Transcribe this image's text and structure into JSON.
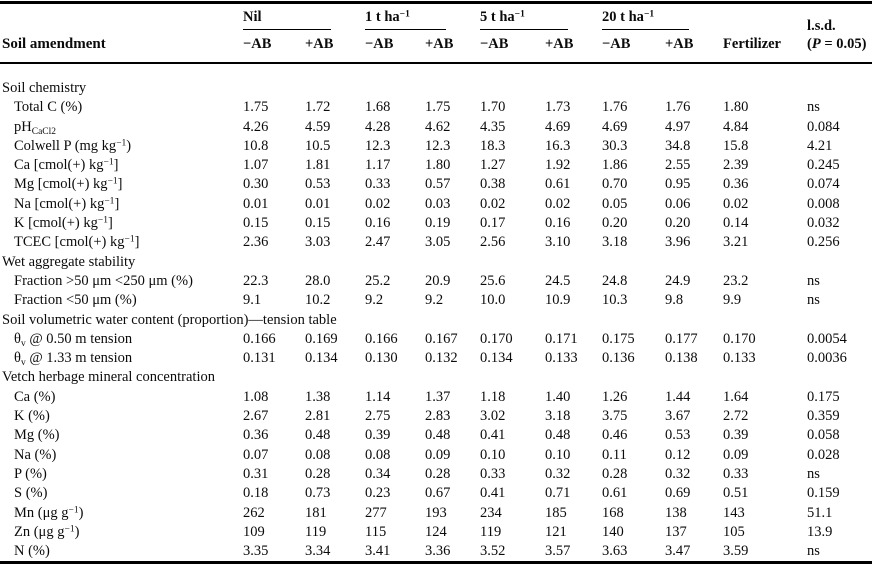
{
  "header": {
    "row_label": "Soil amendment",
    "groups": [
      {
        "label": [
          {
            "t": "Nil"
          }
        ],
        "subcols": [
          "−AB",
          "+AB"
        ]
      },
      {
        "label": [
          {
            "t": "1 t ha"
          },
          {
            "t": "−1",
            "s": "sup"
          }
        ],
        "subcols": [
          "−AB",
          "+AB"
        ]
      },
      {
        "label": [
          {
            "t": "5 t ha"
          },
          {
            "t": "−1",
            "s": "sup"
          }
        ],
        "subcols": [
          "−AB",
          "+AB"
        ]
      },
      {
        "label": [
          {
            "t": "20 t ha"
          },
          {
            "t": "−1",
            "s": "sup"
          }
        ],
        "subcols": [
          "−AB",
          "+AB"
        ]
      }
    ],
    "fertilizer": "Fertilizer",
    "lsd_line1": [
      {
        "t": "l.s.d."
      }
    ],
    "lsd_line2": [
      {
        "t": "("
      },
      {
        "t": "P",
        "s": "i"
      },
      {
        "t": " = 0.05)"
      }
    ]
  },
  "rows": [
    {
      "type": "section",
      "label": [
        {
          "t": "Soil chemistry"
        }
      ]
    },
    {
      "type": "data",
      "label": [
        {
          "t": "Total C (%)"
        }
      ],
      "values": [
        "1.75",
        "1.72",
        "1.68",
        "1.75",
        "1.70",
        "1.73",
        "1.76",
        "1.76",
        "1.80",
        "ns"
      ]
    },
    {
      "type": "data",
      "label": [
        {
          "t": "pH"
        },
        {
          "t": "CaCl2",
          "s": "sub"
        }
      ],
      "values": [
        "4.26",
        "4.59",
        "4.28",
        "4.62",
        "4.35",
        "4.69",
        "4.69",
        "4.97",
        "4.84",
        "0.084"
      ]
    },
    {
      "type": "data",
      "label": [
        {
          "t": "Colwell P (mg kg"
        },
        {
          "t": "−1",
          "s": "sup"
        },
        {
          "t": ")"
        }
      ],
      "values": [
        "10.8",
        "10.5",
        "12.3",
        "12.3",
        "18.3",
        "16.3",
        "30.3",
        "34.8",
        "15.8",
        "4.21"
      ]
    },
    {
      "type": "data",
      "label": [
        {
          "t": "Ca [cmol(+) kg"
        },
        {
          "t": "−1",
          "s": "sup"
        },
        {
          "t": "]"
        }
      ],
      "values": [
        "1.07",
        "1.81",
        "1.17",
        "1.80",
        "1.27",
        "1.92",
        "1.86",
        "2.55",
        "2.39",
        "0.245"
      ]
    },
    {
      "type": "data",
      "label": [
        {
          "t": "Mg [cmol(+) kg"
        },
        {
          "t": "−1",
          "s": "sup"
        },
        {
          "t": "]"
        }
      ],
      "values": [
        "0.30",
        "0.53",
        "0.33",
        "0.57",
        "0.38",
        "0.61",
        "0.70",
        "0.95",
        "0.36",
        "0.074"
      ]
    },
    {
      "type": "data",
      "label": [
        {
          "t": "Na [cmol(+) kg"
        },
        {
          "t": "−1",
          "s": "sup"
        },
        {
          "t": "]"
        }
      ],
      "values": [
        "0.01",
        "0.01",
        "0.02",
        "0.03",
        "0.02",
        "0.02",
        "0.05",
        "0.06",
        "0.02",
        "0.008"
      ]
    },
    {
      "type": "data",
      "label": [
        {
          "t": "K [cmol(+) kg"
        },
        {
          "t": "−1",
          "s": "sup"
        },
        {
          "t": "]"
        }
      ],
      "values": [
        "0.15",
        "0.15",
        "0.16",
        "0.19",
        "0.17",
        "0.16",
        "0.20",
        "0.20",
        "0.14",
        "0.032"
      ]
    },
    {
      "type": "data",
      "label": [
        {
          "t": "TCEC [cmol(+) kg"
        },
        {
          "t": "−1",
          "s": "sup"
        },
        {
          "t": "]"
        }
      ],
      "values": [
        "2.36",
        "3.03",
        "2.47",
        "3.05",
        "2.56",
        "3.10",
        "3.18",
        "3.96",
        "3.21",
        "0.256"
      ]
    },
    {
      "type": "section",
      "label": [
        {
          "t": "Wet aggregate stability"
        }
      ]
    },
    {
      "type": "data",
      "label": [
        {
          "t": "Fraction >50 μm <250 μm (%)"
        }
      ],
      "values": [
        "22.3",
        "28.0",
        "25.2",
        "20.9",
        "25.6",
        "24.5",
        "24.8",
        "24.9",
        "23.2",
        "ns"
      ]
    },
    {
      "type": "data",
      "label": [
        {
          "t": "Fraction <50 μm (%)"
        }
      ],
      "values": [
        "9.1",
        "10.2",
        "9.2",
        "9.2",
        "10.0",
        "10.9",
        "10.3",
        "9.8",
        "9.9",
        "ns"
      ]
    },
    {
      "type": "section",
      "label": [
        {
          "t": "Soil volumetric water content (proportion)—tension table"
        }
      ]
    },
    {
      "type": "data",
      "label": [
        {
          "t": "θ"
        },
        {
          "t": "v",
          "s": "sub"
        },
        {
          "t": " @ 0.50 m tension"
        }
      ],
      "values": [
        "0.166",
        "0.169",
        "0.166",
        "0.167",
        "0.170",
        "0.171",
        "0.175",
        "0.177",
        "0.170",
        "0.0054"
      ]
    },
    {
      "type": "data",
      "label": [
        {
          "t": "θ"
        },
        {
          "t": "v",
          "s": "sub"
        },
        {
          "t": " @ 1.33 m tension"
        }
      ],
      "values": [
        "0.131",
        "0.134",
        "0.130",
        "0.132",
        "0.134",
        "0.133",
        "0.136",
        "0.138",
        "0.133",
        "0.0036"
      ]
    },
    {
      "type": "section",
      "label": [
        {
          "t": "Vetch herbage mineral concentration"
        }
      ]
    },
    {
      "type": "data",
      "label": [
        {
          "t": "Ca (%)"
        }
      ],
      "values": [
        "1.08",
        "1.38",
        "1.14",
        "1.37",
        "1.18",
        "1.40",
        "1.26",
        "1.44",
        "1.64",
        "0.175"
      ]
    },
    {
      "type": "data",
      "label": [
        {
          "t": "K (%)"
        }
      ],
      "values": [
        "2.67",
        "2.81",
        "2.75",
        "2.83",
        "3.02",
        "3.18",
        "3.75",
        "3.67",
        "2.72",
        "0.359"
      ]
    },
    {
      "type": "data",
      "label": [
        {
          "t": "Mg (%)"
        }
      ],
      "values": [
        "0.36",
        "0.48",
        "0.39",
        "0.48",
        "0.41",
        "0.48",
        "0.46",
        "0.53",
        "0.39",
        "0.058"
      ]
    },
    {
      "type": "data",
      "label": [
        {
          "t": "Na (%)"
        }
      ],
      "values": [
        "0.07",
        "0.08",
        "0.08",
        "0.09",
        "0.10",
        "0.10",
        "0.11",
        "0.12",
        "0.09",
        "0.028"
      ]
    },
    {
      "type": "data",
      "label": [
        {
          "t": "P (%)"
        }
      ],
      "values": [
        "0.31",
        "0.28",
        "0.34",
        "0.28",
        "0.33",
        "0.32",
        "0.28",
        "0.32",
        "0.33",
        "ns"
      ]
    },
    {
      "type": "data",
      "label": [
        {
          "t": "S (%)"
        }
      ],
      "values": [
        "0.18",
        "0.73",
        "0.23",
        "0.67",
        "0.41",
        "0.71",
        "0.61",
        "0.69",
        "0.51",
        "0.159"
      ]
    },
    {
      "type": "data",
      "label": [
        {
          "t": "Mn (μg g"
        },
        {
          "t": "−1",
          "s": "sup"
        },
        {
          "t": ")"
        }
      ],
      "values": [
        "262",
        "181",
        "277",
        "193",
        "234",
        "185",
        "168",
        "138",
        "143",
        "51.1"
      ]
    },
    {
      "type": "data",
      "label": [
        {
          "t": "Zn (μg g"
        },
        {
          "t": "−1",
          "s": "sup"
        },
        {
          "t": ")"
        }
      ],
      "values": [
        "109",
        "119",
        "115",
        "124",
        "119",
        "121",
        "140",
        "137",
        "105",
        "13.9"
      ]
    },
    {
      "type": "data",
      "label": [
        {
          "t": "N (%)"
        }
      ],
      "values": [
        "3.35",
        "3.34",
        "3.41",
        "3.36",
        "3.52",
        "3.57",
        "3.63",
        "3.47",
        "3.59",
        "ns"
      ]
    }
  ]
}
